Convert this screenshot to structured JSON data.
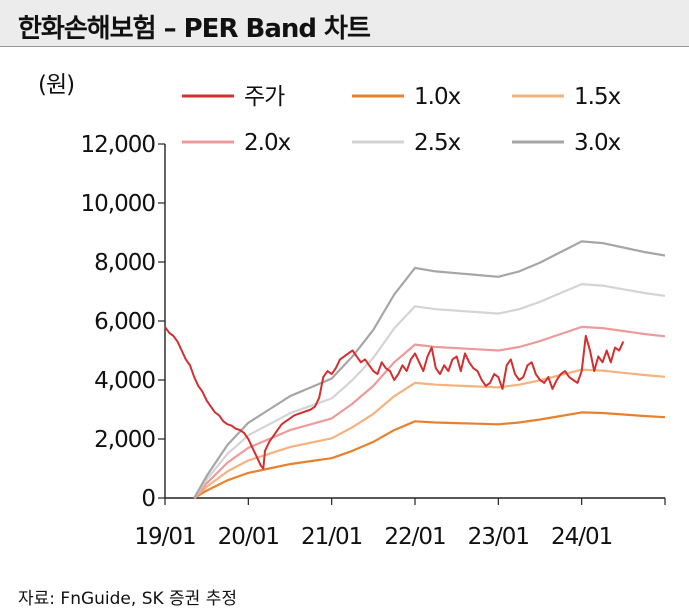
{
  "header": {
    "title": "한화손해보험 – PER Band 차트"
  },
  "footer": {
    "source": "자료: FnGuide, SK 증권 추정"
  },
  "chart_data": {
    "type": "line",
    "title": "한화손해보험 – PER Band 차트",
    "ylabel": "(원)",
    "xlabel": "",
    "ylim": [
      0,
      12000
    ],
    "yticks": [
      0,
      2000,
      4000,
      6000,
      8000,
      10000,
      12000
    ],
    "ytick_labels": [
      "0",
      "2,000",
      "4,000",
      "6,000",
      "8,000",
      "10,000",
      "12,000"
    ],
    "xlim": [
      2019.0,
      2025.0
    ],
    "xticks": [
      2019.0,
      2020.0,
      2021.0,
      2022.0,
      2023.0,
      2024.0
    ],
    "xtick_labels": [
      "19/01",
      "20/01",
      "21/01",
      "22/01",
      "23/01",
      "24/01"
    ],
    "legend": [
      "주가",
      "1.0x",
      "1.5x",
      "2.0x",
      "2.5x",
      "3.0x"
    ],
    "colors": {
      "주가": "#d32f2f",
      "1.0x": "#e8812c",
      "1.5x": "#f5b27e",
      "2.0x": "#ed9a9a",
      "2.5x": "#d4d4d4",
      "3.0x": "#a6a6a6"
    },
    "bands": {
      "x": [
        2019.35,
        2019.5,
        2019.75,
        2020.0,
        2020.25,
        2020.5,
        2020.75,
        2021.0,
        2021.25,
        2021.5,
        2021.75,
        2022.0,
        2022.25,
        2022.5,
        2022.75,
        2023.0,
        2023.25,
        2023.5,
        2023.75,
        2024.0,
        2024.25,
        2024.5,
        2024.75,
        2025.0
      ],
      "series": [
        {
          "name": "1.0x",
          "values": [
            0,
            250,
            600,
            850,
            1000,
            1150,
            1250,
            1350,
            1600,
            1900,
            2300,
            2600,
            2560,
            2540,
            2520,
            2500,
            2560,
            2660,
            2780,
            2900,
            2880,
            2830,
            2780,
            2740
          ]
        },
        {
          "name": "1.5x",
          "values": [
            0,
            380,
            900,
            1275,
            1500,
            1725,
            1875,
            2025,
            2400,
            2850,
            3450,
            3900,
            3840,
            3810,
            3780,
            3750,
            3840,
            3990,
            4170,
            4350,
            4320,
            4245,
            4170,
            4110
          ]
        },
        {
          "name": "2.0x",
          "values": [
            0,
            500,
            1200,
            1700,
            2000,
            2300,
            2500,
            2700,
            3200,
            3800,
            4600,
            5200,
            5120,
            5080,
            5040,
            5000,
            5120,
            5320,
            5560,
            5800,
            5760,
            5660,
            5560,
            5480
          ]
        },
        {
          "name": "2.5x",
          "values": [
            0,
            630,
            1500,
            2125,
            2500,
            2875,
            3125,
            3375,
            4000,
            4750,
            5750,
            6500,
            6400,
            6350,
            6300,
            6250,
            6400,
            6650,
            6950,
            7250,
            7200,
            7075,
            6950,
            6850
          ]
        },
        {
          "name": "3.0x",
          "values": [
            0,
            750,
            1800,
            2550,
            3000,
            3450,
            3750,
            4050,
            4800,
            5700,
            6900,
            7800,
            7680,
            7620,
            7560,
            7500,
            7680,
            7980,
            8340,
            8700,
            8640,
            8490,
            8340,
            8220
          ]
        }
      ]
    },
    "price": {
      "name": "주가",
      "x": [
        2019.0,
        2019.05,
        2019.1,
        2019.15,
        2019.2,
        2019.25,
        2019.3,
        2019.35,
        2019.4,
        2019.45,
        2019.5,
        2019.55,
        2019.6,
        2019.65,
        2019.7,
        2019.75,
        2019.8,
        2019.85,
        2019.9,
        2019.95,
        2020.0,
        2020.05,
        2020.1,
        2020.15,
        2020.18,
        2020.2,
        2020.25,
        2020.3,
        2020.35,
        2020.4,
        2020.45,
        2020.5,
        2020.55,
        2020.6,
        2020.65,
        2020.7,
        2020.75,
        2020.8,
        2020.85,
        2020.9,
        2020.95,
        2021.0,
        2021.05,
        2021.1,
        2021.15,
        2021.2,
        2021.25,
        2021.3,
        2021.35,
        2021.4,
        2021.45,
        2021.5,
        2021.55,
        2021.6,
        2021.65,
        2021.7,
        2021.75,
        2021.8,
        2021.85,
        2021.9,
        2021.95,
        2022.0,
        2022.05,
        2022.1,
        2022.15,
        2022.2,
        2022.25,
        2022.3,
        2022.35,
        2022.4,
        2022.45,
        2022.5,
        2022.55,
        2022.6,
        2022.65,
        2022.7,
        2022.75,
        2022.8,
        2022.85,
        2022.9,
        2022.95,
        2023.0,
        2023.05,
        2023.1,
        2023.15,
        2023.2,
        2023.25,
        2023.3,
        2023.35,
        2023.4,
        2023.45,
        2023.5,
        2023.55,
        2023.6,
        2023.65,
        2023.7,
        2023.75,
        2023.8,
        2023.85,
        2023.9,
        2023.95,
        2024.0,
        2024.05,
        2024.1,
        2024.15,
        2024.2,
        2024.25,
        2024.3,
        2024.35,
        2024.4,
        2024.45,
        2024.5
      ],
      "values": [
        5800,
        5600,
        5500,
        5300,
        5000,
        4700,
        4500,
        4100,
        3800,
        3600,
        3300,
        3100,
        2900,
        2800,
        2600,
        2500,
        2450,
        2350,
        2300,
        2200,
        2000,
        1700,
        1400,
        1100,
        1000,
        1600,
        1900,
        2100,
        2300,
        2500,
        2600,
        2700,
        2800,
        2850,
        2900,
        2950,
        3000,
        3100,
        3400,
        4100,
        4300,
        4200,
        4400,
        4700,
        4800,
        4900,
        5000,
        4800,
        4600,
        4700,
        4500,
        4300,
        4200,
        4600,
        4400,
        4300,
        4000,
        4200,
        4500,
        4300,
        4700,
        4900,
        4600,
        4300,
        4800,
        5100,
        4400,
        4200,
        4500,
        4300,
        4700,
        4800,
        4300,
        4900,
        4600,
        4400,
        4300,
        4000,
        3800,
        3900,
        4200,
        4100,
        3700,
        4500,
        4700,
        4200,
        4000,
        4100,
        4500,
        4600,
        4200,
        4000,
        3900,
        4100,
        3700,
        4000,
        4200,
        4300,
        4100,
        4000,
        3900,
        4300,
        5500,
        5000,
        4300,
        4800,
        4600,
        5000,
        4600,
        5100,
        5000,
        5300
      ]
    }
  }
}
